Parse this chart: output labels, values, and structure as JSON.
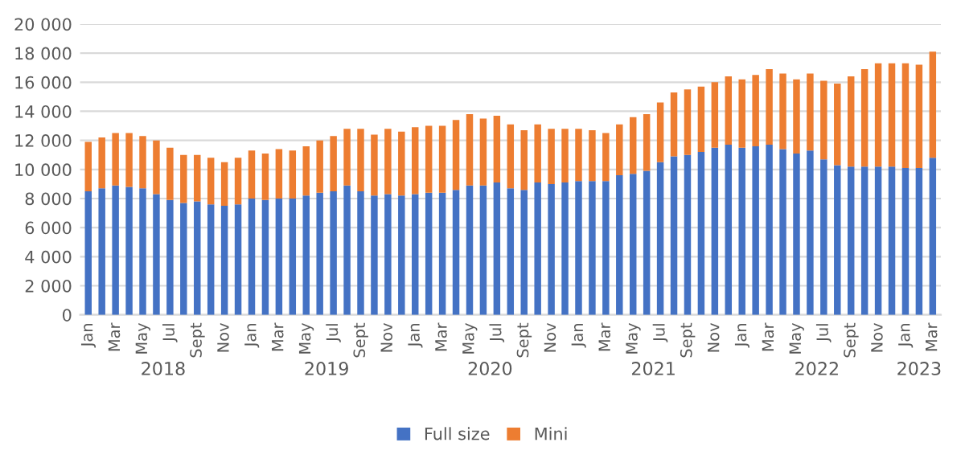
{
  "chart_data": {
    "type": "bar",
    "stacked": true,
    "categories": [
      "Jan",
      null,
      "Mar",
      null,
      "May",
      null,
      "Jul",
      null,
      "Sept",
      null,
      "Nov",
      null,
      "Jan",
      null,
      "Mar",
      null,
      "May",
      null,
      "Jul",
      null,
      "Sept",
      null,
      "Nov",
      null,
      "Jan",
      null,
      "Mar",
      null,
      "May",
      null,
      "Jul",
      null,
      "Sept",
      null,
      "Nov",
      null,
      "Jan",
      null,
      "Mar",
      null,
      "May",
      null,
      "Jul",
      null,
      "Sept",
      null,
      "Nov",
      null,
      "Jan",
      null,
      "Mar",
      null,
      "May",
      null,
      "Jul",
      null,
      "Sept",
      null,
      "Nov",
      null,
      "Jan",
      null,
      "Mar"
    ],
    "series": [
      {
        "name": "Full size",
        "color": "#4472c4",
        "values": [
          8500,
          8700,
          8900,
          8800,
          8700,
          8300,
          7900,
          7700,
          7800,
          7600,
          7500,
          7600,
          8000,
          7900,
          8000,
          8000,
          8200,
          8400,
          8500,
          8900,
          8500,
          8200,
          8300,
          8200,
          8300,
          8400,
          8400,
          8600,
          8900,
          8900,
          9100,
          8700,
          8600,
          9100,
          9000,
          9100,
          9200,
          9200,
          9200,
          9600,
          9700,
          9900,
          10500,
          10900,
          11000,
          11200,
          11500,
          11700,
          11500,
          11600,
          11700,
          11400,
          11100,
          11300,
          10700,
          10300,
          10200,
          10200,
          10200,
          10200,
          10100,
          10100,
          10800
        ]
      },
      {
        "name": "Mini",
        "color": "#ed7d31",
        "values": [
          3400,
          3500,
          3600,
          3700,
          3600,
          3700,
          3600,
          3300,
          3200,
          3200,
          3000,
          3200,
          3300,
          3200,
          3400,
          3300,
          3400,
          3600,
          3800,
          3900,
          4300,
          4200,
          4500,
          4400,
          4600,
          4600,
          4600,
          4800,
          4900,
          4600,
          4600,
          4400,
          4100,
          4000,
          3800,
          3700,
          3600,
          3500,
          3300,
          3500,
          3900,
          3900,
          4100,
          4400,
          4500,
          4500,
          4500,
          4700,
          4700,
          4900,
          5200,
          5200,
          5100,
          5300,
          5400,
          5600,
          6200,
          6700,
          7100,
          7100,
          7200,
          7100,
          7300
        ]
      }
    ],
    "ylim": [
      0,
      20000
    ],
    "yticks": [
      0,
      {
        "value": 2000,
        "label": "2 000"
      },
      {
        "value": 4000,
        "label": "4 000"
      },
      {
        "value": 6000,
        "label": "6 000"
      },
      {
        "value": 8000,
        "label": "8 000"
      },
      {
        "value": 10000,
        "label": "10 000"
      },
      {
        "value": 12000,
        "label": "12 000"
      },
      {
        "value": 14000,
        "label": "14 000"
      },
      {
        "value": 16000,
        "label": "16 000"
      },
      {
        "value": 18000,
        "label": "18 000"
      },
      {
        "value": 20000,
        "label": "20 000"
      }
    ],
    "grid": "y",
    "legend": "bottom",
    "annotations": [
      "2018",
      "2019",
      "2020",
      "2021",
      "2022",
      "2023"
    ]
  }
}
